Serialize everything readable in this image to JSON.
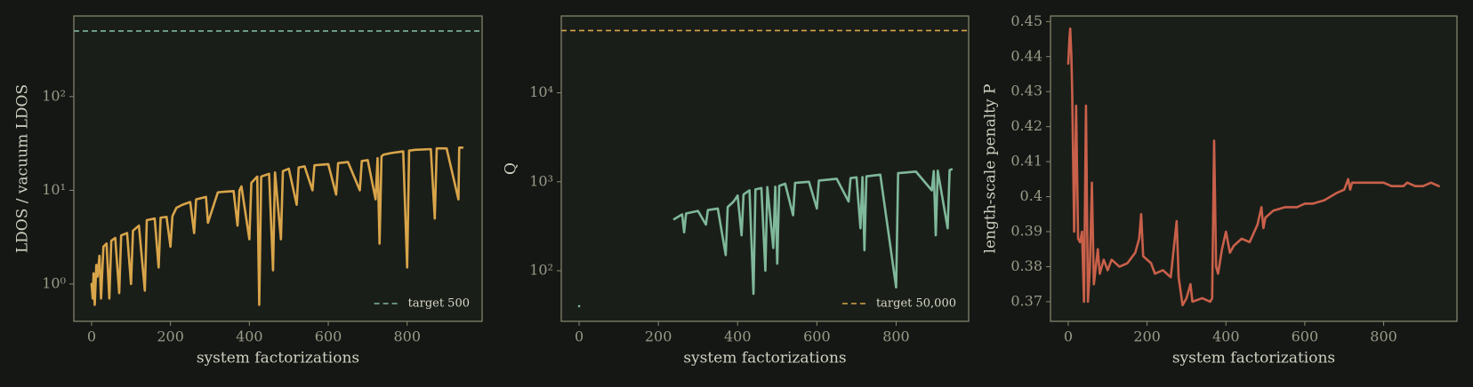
{
  "chart_data": [
    {
      "type": "line",
      "xlabel": "system factorizations",
      "ylabel": "LDOS / vacuum LDOS",
      "log_y": true,
      "xlim": [
        -45,
        990
      ],
      "ylim": [
        0.4,
        724
      ],
      "xticks": [
        0,
        200,
        400,
        600,
        800
      ],
      "yticks": [
        {
          "value": 1,
          "label": "10⁰"
        },
        {
          "value": 10,
          "label": "10¹"
        },
        {
          "value": 100,
          "label": "10²"
        }
      ],
      "x": [
        0,
        3,
        5,
        8,
        12,
        15,
        20,
        24,
        30,
        38,
        45,
        50,
        60,
        70,
        75,
        90,
        100,
        105,
        120,
        135,
        140,
        160,
        170,
        175,
        190,
        200,
        205,
        215,
        230,
        250,
        260,
        265,
        290,
        295,
        320,
        330,
        360,
        370,
        375,
        380,
        400,
        405,
        420,
        425,
        430,
        450,
        460,
        465,
        480,
        485,
        500,
        520,
        525,
        540,
        560,
        565,
        600,
        620,
        625,
        650,
        680,
        685,
        700,
        720,
        725,
        730,
        735,
        740,
        760,
        790,
        800,
        805,
        820,
        860,
        870,
        875,
        900,
        930,
        932,
        940
      ],
      "series": [
        {
          "color": "#d9a54a",
          "values": [
            1.0,
            0.7,
            1.3,
            0.6,
            1.6,
            1.2,
            2.0,
            0.7,
            2.5,
            2.7,
            0.7,
            2.9,
            3.1,
            0.8,
            3.3,
            3.5,
            1.0,
            3.7,
            4.2,
            0.85,
            4.8,
            5.0,
            1.5,
            5.1,
            5.2,
            2.5,
            5.3,
            6.5,
            7.0,
            7.5,
            3.5,
            8,
            8.5,
            4.5,
            9.5,
            9.6,
            9.8,
            4.2,
            10,
            11,
            3,
            12,
            14,
            0.6,
            14,
            15,
            1.4,
            15.5,
            3,
            16,
            17,
            7,
            17.5,
            18,
            10,
            18.5,
            19,
            9,
            19.5,
            20,
            10,
            20.5,
            21,
            8,
            22,
            2.7,
            23,
            24,
            25,
            26,
            1.5,
            26.5,
            27,
            27.5,
            5,
            28,
            28,
            8,
            28.5,
            28.5
          ]
        }
      ],
      "target": {
        "value": 500,
        "label": "target 500",
        "color": "#7fb89a"
      }
    },
    {
      "type": "line",
      "xlabel": "system factorizations",
      "ylabel": "Q",
      "log_y": true,
      "xlim": [
        -45,
        983
      ],
      "ylim": [
        27,
        73000
      ],
      "xticks": [
        0,
        200,
        400,
        600,
        800
      ],
      "yticks": [
        {
          "value": 100,
          "label": "10²"
        },
        {
          "value": 1000,
          "label": "10³"
        },
        {
          "value": 10000,
          "label": "10⁴"
        }
      ],
      "x": [
        0,
        1,
        240,
        260,
        265,
        270,
        300,
        320,
        325,
        350,
        370,
        375,
        390,
        400,
        410,
        415,
        430,
        440,
        445,
        460,
        470,
        475,
        490,
        495,
        500,
        505,
        520,
        540,
        545,
        580,
        600,
        605,
        650,
        680,
        685,
        700,
        710,
        715,
        720,
        725,
        760,
        800,
        805,
        850,
        890,
        895,
        900,
        905,
        930,
        935,
        940
      ],
      "series": [
        {
          "color": "#7fb89a",
          "values": [
            40,
            null,
            380,
            430,
            270,
            440,
            470,
            330,
            480,
            500,
            150,
            520,
            600,
            700,
            250,
            720,
            800,
            55,
            820,
            850,
            100,
            870,
            180,
            880,
            120,
            900,
            950,
            420,
            970,
            1000,
            500,
            1030,
            1080,
            600,
            1100,
            1120,
            300,
            1130,
            170,
            1150,
            1200,
            65,
            1250,
            1300,
            800,
            1320,
            250,
            1330,
            300,
            1350,
            1380
          ]
        }
      ],
      "target": {
        "value": 50000,
        "label": "target 50,000",
        "color": "#d9a54a"
      }
    },
    {
      "type": "line",
      "xlabel": "system factorizations",
      "ylabel": "length-scale penalty P",
      "log_y": false,
      "xlim": [
        -45,
        986
      ],
      "ylim": [
        0.3644,
        0.4516
      ],
      "xticks": [
        0,
        200,
        400,
        600,
        800
      ],
      "yticks": [
        0.37,
        0.38,
        0.39,
        0.4,
        {
          "value": 0.41,
          "label": "0.41"
        },
        0.42,
        0.43,
        0.44,
        0.45
      ],
      "x": [
        0,
        3,
        5,
        8,
        10,
        15,
        20,
        25,
        30,
        35,
        40,
        45,
        50,
        55,
        60,
        65,
        75,
        80,
        90,
        100,
        110,
        130,
        150,
        170,
        180,
        185,
        190,
        210,
        220,
        240,
        260,
        275,
        280,
        290,
        300,
        310,
        315,
        340,
        360,
        365,
        370,
        375,
        380,
        390,
        400,
        410,
        420,
        440,
        460,
        480,
        490,
        495,
        500,
        520,
        550,
        580,
        600,
        620,
        650,
        680,
        700,
        710,
        715,
        720,
        740,
        760,
        800,
        820,
        850,
        860,
        880,
        900,
        920,
        940
      ],
      "series": [
        {
          "color": "#c9604a",
          "values": [
            0.438,
            0.445,
            0.448,
            0.44,
            0.43,
            0.39,
            0.426,
            0.388,
            0.387,
            0.39,
            0.37,
            0.426,
            0.37,
            0.38,
            0.404,
            0.375,
            0.385,
            0.378,
            0.382,
            0.379,
            0.382,
            0.38,
            0.381,
            0.384,
            0.388,
            0.395,
            0.383,
            0.381,
            0.378,
            0.379,
            0.377,
            0.393,
            0.377,
            0.369,
            0.371,
            0.375,
            0.37,
            0.371,
            0.37,
            0.371,
            0.416,
            0.38,
            0.378,
            0.385,
            0.39,
            0.384,
            0.386,
            0.388,
            0.387,
            0.392,
            0.397,
            0.391,
            0.394,
            0.396,
            0.397,
            0.397,
            0.398,
            0.398,
            0.399,
            0.401,
            0.402,
            0.405,
            0.402,
            0.404,
            0.404,
            0.404,
            0.404,
            0.403,
            0.403,
            0.404,
            0.403,
            0.403,
            0.404,
            0.403
          ]
        }
      ]
    }
  ]
}
